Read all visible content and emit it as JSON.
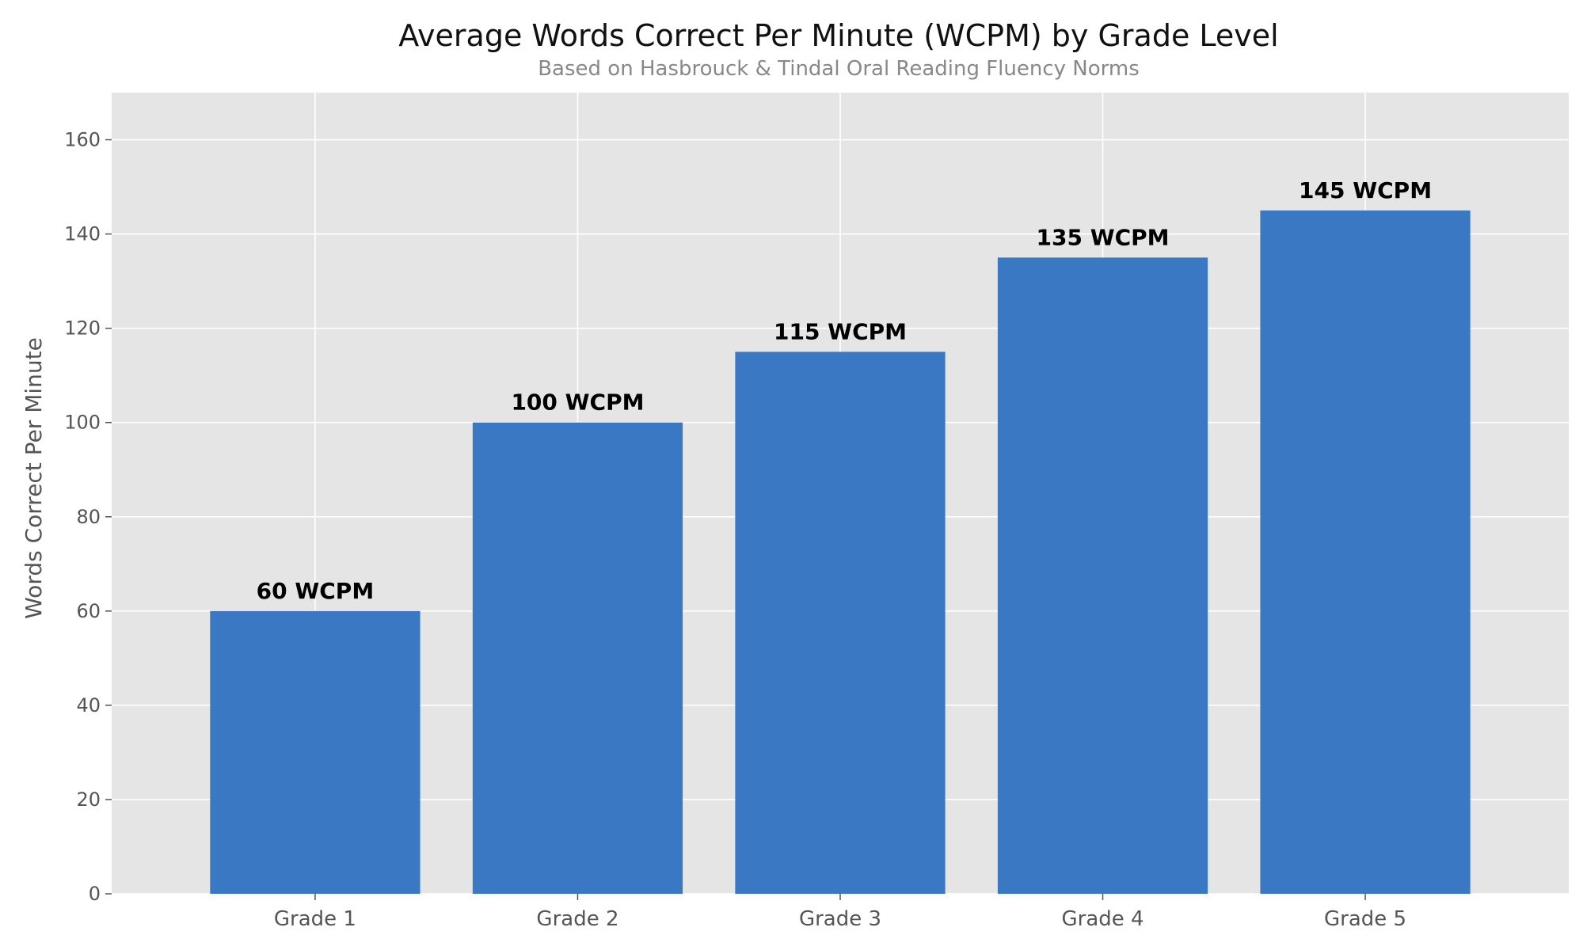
{
  "chart_data": {
    "type": "bar",
    "title": "Average Words Correct Per Minute (WCPM) by Grade Level",
    "subtitle": "Based on Hasbrouck & Tindal Oral Reading Fluency Norms",
    "xlabel": "",
    "ylabel": "Words Correct Per Minute",
    "categories": [
      "Grade 1",
      "Grade 2",
      "Grade 3",
      "Grade 4",
      "Grade 5"
    ],
    "values": [
      60,
      100,
      115,
      135,
      145
    ],
    "data_labels": [
      "60 WCPM",
      "100 WCPM",
      "115 WCPM",
      "135 WCPM",
      "145 WCPM"
    ],
    "ylim": [
      0,
      170
    ],
    "yticks": [
      0,
      20,
      40,
      60,
      80,
      100,
      120,
      140,
      160
    ],
    "grid": true,
    "legend": "none",
    "colors": {
      "bar": "#3A78C4",
      "plot_bg": "#E5E5E5",
      "grid": "#FFFFFF",
      "title": "#111111",
      "subtitle": "#888888",
      "tick": "#555555",
      "label": "#000000"
    }
  }
}
